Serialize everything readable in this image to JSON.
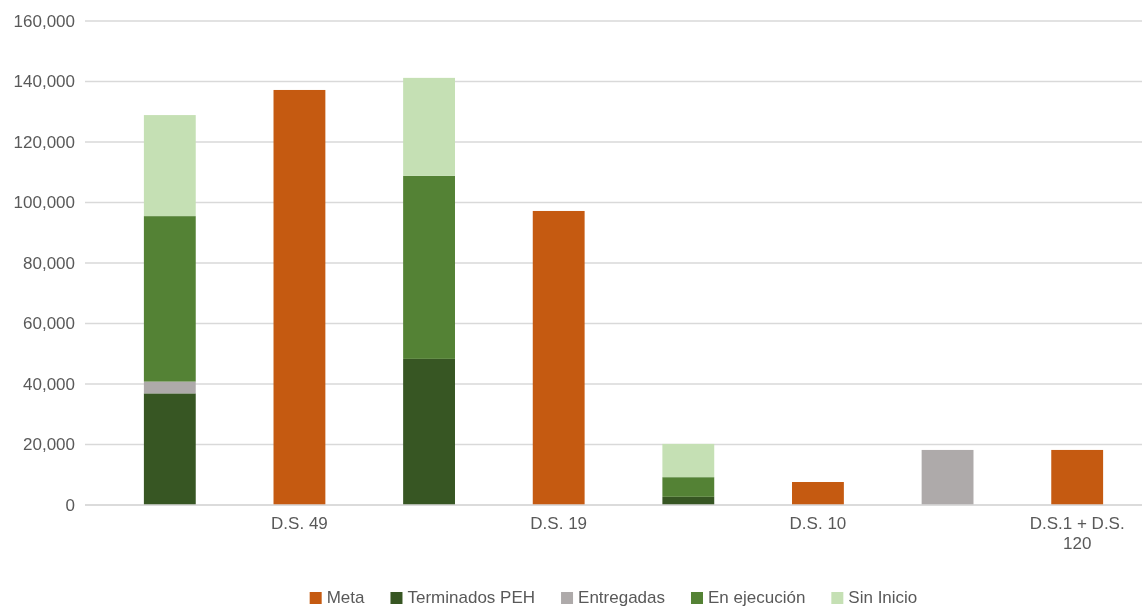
{
  "chart_data": {
    "type": "bar",
    "stacked": true,
    "categories": [
      null,
      "D.S. 49",
      null,
      "D.S. 19",
      null,
      "D.S. 10",
      null,
      "D.S.1 + D.S. 120"
    ],
    "series": [
      {
        "name": "Meta",
        "color": "#c55a11",
        "values": [
          null,
          137200,
          null,
          97200,
          null,
          7600,
          null,
          18200
        ]
      },
      {
        "name": "Terminados PEH",
        "color": "#375623",
        "values": [
          36900,
          null,
          48300,
          null,
          2700,
          null,
          null,
          null
        ]
      },
      {
        "name": "Entregadas",
        "color": "#aeaaaa",
        "values": [
          3900,
          null,
          null,
          null,
          null,
          null,
          18200,
          null
        ]
      },
      {
        "name": "En ejecución",
        "color": "#548235",
        "values": [
          54700,
          null,
          60500,
          null,
          6500,
          null,
          null,
          null
        ]
      },
      {
        "name": "Sin Inicio",
        "color": "#c5e0b4",
        "values": [
          33400,
          null,
          32400,
          null,
          11000,
          null,
          null,
          null
        ]
      }
    ],
    "ylim": [
      0,
      160000
    ],
    "yticks": [
      {
        "value": 0,
        "label": "0"
      },
      {
        "value": 20000,
        "label": "20,000"
      },
      {
        "value": 40000,
        "label": "40,000"
      },
      {
        "value": 60000,
        "label": "60,000"
      },
      {
        "value": 80000,
        "label": "80,000"
      },
      {
        "value": 100000,
        "label": "100,000"
      },
      {
        "value": 120000,
        "label": "120,000"
      },
      {
        "value": 140000,
        "label": "140,000"
      },
      {
        "value": 160000,
        "label": "160,000"
      }
    ],
    "grid": "y",
    "legend": "bottom"
  }
}
